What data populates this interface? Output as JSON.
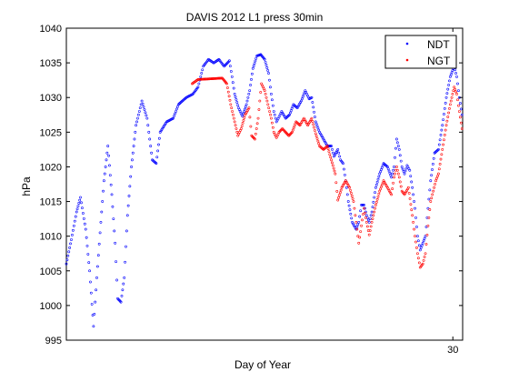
{
  "chart_data": {
    "type": "scatter",
    "title": "DAVIS 2012 L1 press 30min",
    "xlabel": "Day of Year",
    "ylabel": "hPa",
    "xlim": [
      0.42,
      30.75
    ],
    "ylim": [
      995,
      1040
    ],
    "x_ticks": [
      30
    ],
    "y_ticks": [
      995,
      1000,
      1005,
      1010,
      1015,
      1020,
      1025,
      1030,
      1035,
      1040
    ],
    "legend_position": "top-right",
    "grid": false,
    "series": [
      {
        "name": "NDT",
        "color": "#0000ff",
        "marker": "dot",
        "points": [
          [
            0.42,
            1006
          ],
          [
            0.8,
            1009.5
          ],
          [
            1.2,
            1013.5
          ],
          [
            1.5,
            1015.6
          ],
          [
            1.9,
            1011
          ],
          [
            2.2,
            1005
          ],
          [
            2.5,
            997
          ],
          [
            2.75,
            1004
          ],
          [
            3.0,
            1010.5
          ],
          [
            3.3,
            1018
          ],
          [
            3.6,
            1023
          ],
          [
            3.9,
            1016
          ],
          [
            4.15,
            1009
          ],
          [
            4.35,
            1001
          ],
          [
            4.6,
            1000.5
          ],
          [
            4.85,
            1004
          ],
          [
            5.1,
            1013
          ],
          [
            5.4,
            1020
          ],
          [
            5.75,
            1026
          ],
          [
            6.2,
            1029.5
          ],
          [
            6.6,
            1027
          ],
          [
            7.0,
            1021
          ],
          [
            7.3,
            1020.5
          ],
          [
            7.6,
            1025
          ],
          [
            8.1,
            1026.5
          ],
          [
            8.6,
            1027
          ],
          [
            9.0,
            1029
          ],
          [
            9.6,
            1030
          ],
          [
            10.1,
            1030.5
          ],
          [
            10.5,
            1031.5
          ],
          [
            10.9,
            1034.5
          ],
          [
            11.3,
            1035.5
          ],
          [
            11.7,
            1035
          ],
          [
            12.1,
            1035.5
          ],
          [
            12.5,
            1034.5
          ],
          [
            12.9,
            1035.3
          ],
          [
            13.1,
            1033
          ],
          [
            13.3,
            1030.5
          ],
          [
            13.6,
            1028.5
          ],
          [
            13.9,
            1027.3
          ],
          [
            14.2,
            1029
          ],
          [
            14.45,
            1031
          ],
          [
            14.7,
            1034.2
          ],
          [
            15.0,
            1036
          ],
          [
            15.3,
            1036.2
          ],
          [
            15.6,
            1035.5
          ],
          [
            15.9,
            1033.5
          ],
          [
            16.1,
            1030.5
          ],
          [
            16.3,
            1028
          ],
          [
            16.5,
            1026.5
          ],
          [
            16.7,
            1027.2
          ],
          [
            16.9,
            1028
          ],
          [
            17.2,
            1027
          ],
          [
            17.5,
            1027.5
          ],
          [
            17.8,
            1029
          ],
          [
            18.1,
            1028.5
          ],
          [
            18.4,
            1029.5
          ],
          [
            18.7,
            1031
          ],
          [
            19.0,
            1029.8
          ],
          [
            19.2,
            1030
          ],
          [
            19.5,
            1026.5
          ],
          [
            19.8,
            1025
          ],
          [
            20.1,
            1024
          ],
          [
            20.4,
            1023
          ],
          [
            20.7,
            1023
          ],
          [
            20.9,
            1021.5
          ],
          [
            21.2,
            1022.5
          ],
          [
            21.4,
            1021
          ],
          [
            21.6,
            1020.5
          ],
          [
            21.8,
            1018
          ],
          [
            22.0,
            1015
          ],
          [
            22.3,
            1012
          ],
          [
            22.6,
            1011
          ],
          [
            22.8,
            1012
          ],
          [
            23.0,
            1014.5
          ],
          [
            23.2,
            1014.5
          ],
          [
            23.4,
            1013
          ],
          [
            23.6,
            1012
          ],
          [
            23.8,
            1013.5
          ],
          [
            24.1,
            1017
          ],
          [
            24.4,
            1019
          ],
          [
            24.7,
            1020.5
          ],
          [
            25.0,
            1020
          ],
          [
            25.3,
            1018.5
          ],
          [
            25.5,
            1020
          ],
          [
            25.7,
            1024
          ],
          [
            25.9,
            1022.5
          ],
          [
            26.1,
            1020
          ],
          [
            26.3,
            1019
          ],
          [
            26.5,
            1020.2
          ],
          [
            26.7,
            1019.5
          ],
          [
            26.9,
            1017
          ],
          [
            27.1,
            1014
          ],
          [
            27.3,
            1010
          ],
          [
            27.5,
            1008
          ],
          [
            27.7,
            1009
          ],
          [
            27.9,
            1010
          ],
          [
            28.1,
            1014
          ],
          [
            28.3,
            1018
          ],
          [
            28.6,
            1022
          ],
          [
            28.9,
            1022.5
          ],
          [
            29.2,
            1026
          ],
          [
            29.5,
            1030
          ],
          [
            29.8,
            1033
          ],
          [
            30.1,
            1034.5
          ],
          [
            30.3,
            1033
          ],
          [
            30.5,
            1030
          ],
          [
            30.7,
            1027.5
          ],
          [
            30.9,
            1026
          ],
          [
            31.1,
            1027
          ],
          [
            31.3,
            1029
          ],
          [
            31.5,
            1030.5
          ],
          [
            31.7,
            1032.1
          ]
        ]
      },
      {
        "name": "NGT",
        "color": "#ff0000",
        "marker": "dot",
        "points": [
          [
            10.05,
            1032
          ],
          [
            10.5,
            1032.6
          ],
          [
            12.35,
            1032.8
          ],
          [
            12.7,
            1032
          ],
          [
            13.0,
            1029
          ],
          [
            13.3,
            1026.5
          ],
          [
            13.55,
            1024.5
          ],
          [
            13.8,
            1025.5
          ],
          [
            14.1,
            1027.5
          ],
          [
            14.4,
            1028.5
          ],
          [
            14.6,
            1024.5
          ],
          [
            14.85,
            1024
          ],
          [
            15.1,
            1027
          ],
          [
            15.35,
            1032
          ],
          [
            15.6,
            1031
          ],
          [
            15.85,
            1029
          ],
          [
            16.1,
            1027
          ],
          [
            16.3,
            1025
          ],
          [
            16.5,
            1024.2
          ],
          [
            16.7,
            1025
          ],
          [
            16.95,
            1025.5
          ],
          [
            17.2,
            1025
          ],
          [
            17.45,
            1024.5
          ],
          [
            17.7,
            1025
          ],
          [
            18.0,
            1026.5
          ],
          [
            18.3,
            1026
          ],
          [
            18.6,
            1027
          ],
          [
            18.9,
            1026
          ],
          [
            19.2,
            1027
          ],
          [
            19.5,
            1024.8
          ],
          [
            19.8,
            1023
          ],
          [
            20.1,
            1022.5
          ],
          [
            20.4,
            1023
          ],
          [
            20.7,
            1021
          ],
          [
            21.0,
            1019
          ],
          [
            21.2,
            1015.2
          ],
          [
            21.5,
            1017
          ],
          [
            21.8,
            1018
          ],
          [
            22.1,
            1017
          ],
          [
            22.4,
            1015
          ],
          [
            22.6,
            1012
          ],
          [
            22.8,
            1009
          ],
          [
            23.0,
            1011.5
          ],
          [
            23.2,
            1014
          ],
          [
            23.4,
            1012
          ],
          [
            23.6,
            1010.2
          ],
          [
            23.8,
            1012
          ],
          [
            24.1,
            1014.5
          ],
          [
            24.4,
            1016.5
          ],
          [
            24.7,
            1018
          ],
          [
            25.0,
            1017
          ],
          [
            25.3,
            1016
          ],
          [
            25.5,
            1018.5
          ],
          [
            25.7,
            1020
          ],
          [
            25.9,
            1018.5
          ],
          [
            26.1,
            1016.5
          ],
          [
            26.3,
            1016
          ],
          [
            26.6,
            1017
          ],
          [
            26.9,
            1013
          ],
          [
            27.1,
            1010
          ],
          [
            27.3,
            1007.5
          ],
          [
            27.5,
            1005.5
          ],
          [
            27.7,
            1006
          ],
          [
            27.9,
            1007.5
          ],
          [
            28.1,
            1011.5
          ],
          [
            28.3,
            1015
          ],
          [
            28.5,
            1016.5
          ],
          [
            28.7,
            1018
          ],
          [
            28.9,
            1019
          ],
          [
            29.2,
            1022.5
          ],
          [
            29.5,
            1026
          ],
          [
            29.8,
            1029
          ],
          [
            30.1,
            1031.5
          ],
          [
            30.3,
            1030.5
          ],
          [
            30.5,
            1028
          ],
          [
            30.7,
            1025.5
          ],
          [
            30.9,
            1023.5
          ],
          [
            31.1,
            1023
          ],
          [
            31.3,
            1024.5
          ],
          [
            31.5,
            1026.5
          ],
          [
            31.7,
            1028.5
          ]
        ]
      }
    ]
  }
}
